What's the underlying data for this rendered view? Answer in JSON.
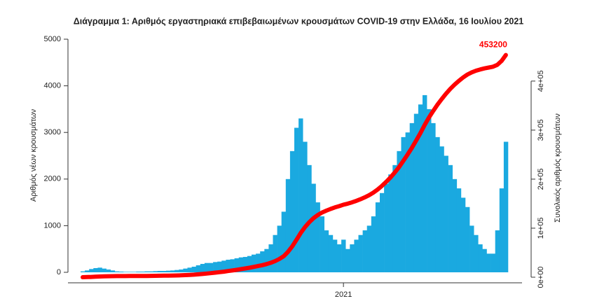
{
  "chart_data": {
    "type": "bar",
    "title": "Διάγραμμα 1: Αριθμός εργαστηριακά επιβεβαιωμένων κρουσμάτων COVID-19 στην Ελλάδα, 16 Ιουλίου 2021",
    "ylabel": "Αριθμός νέων κρουσμάτων",
    "y2label": "Συνολικός αριθμός κρουσμάτων",
    "categories": [
      null,
      null,
      null,
      null,
      null,
      null,
      null,
      null,
      null,
      null,
      null,
      null,
      null,
      null,
      null,
      null,
      null,
      null,
      null,
      null,
      null,
      null,
      null,
      null,
      null,
      null,
      null,
      null,
      null,
      null,
      null,
      null,
      null,
      null,
      null,
      null,
      null,
      null,
      null,
      null,
      null,
      null,
      null,
      null,
      null,
      null,
      null,
      null,
      null,
      null,
      null,
      null,
      null,
      null,
      null,
      null,
      null,
      null,
      null,
      null,
      null,
      "2021",
      null,
      null,
      null,
      null,
      null,
      null,
      null,
      null,
      null,
      null,
      null,
      null,
      null,
      null,
      null,
      null,
      null,
      null,
      null,
      null,
      null,
      null,
      null,
      null,
      null,
      null,
      null,
      null,
      null,
      null,
      null,
      null,
      null,
      null,
      null,
      null,
      null,
      null
    ],
    "values": [
      20,
      40,
      70,
      90,
      100,
      80,
      60,
      40,
      20,
      15,
      10,
      10,
      10,
      15,
      15,
      20,
      20,
      25,
      30,
      30,
      35,
      40,
      50,
      60,
      80,
      100,
      120,
      150,
      180,
      200,
      200,
      220,
      230,
      250,
      270,
      280,
      300,
      320,
      330,
      350,
      380,
      400,
      450,
      500,
      600,
      800,
      1000,
      1300,
      2000,
      2600,
      3100,
      3300,
      2800,
      2300,
      1900,
      1500,
      1200,
      900,
      800,
      700,
      600,
      700,
      500,
      600,
      700,
      800,
      900,
      1000,
      1200,
      1500,
      1700,
      1900,
      2100,
      2300,
      2600,
      2900,
      3000,
      3200,
      3400,
      3600,
      3800,
      3500,
      3200,
      2900,
      2700,
      2500,
      2300,
      2000,
      1800,
      1600,
      1400,
      1000,
      800,
      600,
      500,
      400,
      400,
      900,
      1800,
      2800
    ],
    "color": "#1aa9e0",
    "line": {
      "axis": "y2",
      "color": "#ff0000",
      "values": [
        90,
        260,
        560,
        950,
        1380,
        1720,
        1980,
        2160,
        2240,
        2310,
        2350,
        2390,
        2440,
        2500,
        2560,
        2650,
        2740,
        2850,
        2970,
        3100,
        3250,
        3430,
        3640,
        3900,
        4250,
        4680,
        5190,
        5840,
        6620,
        7480,
        8340,
        9290,
        10280,
        11360,
        12520,
        13730,
        15020,
        16400,
        17820,
        19330,
        20970,
        22690,
        24630,
        26790,
        29370,
        32820,
        37130,
        42730,
        51350,
        62560,
        75920,
        90140,
        102210,
        112130,
        120310,
        126780,
        131950,
        135830,
        139280,
        142300,
        144880,
        147900,
        150050,
        152640,
        155660,
        159100,
        162980,
        167290,
        172470,
        178930,
        186260,
        194450,
        203500,
        213410,
        224620,
        237120,
        250050,
        263840,
        278490,
        294010,
        310390,
        325470,
        339260,
        351760,
        363400,
        374170,
        384090,
        392710,
        400460,
        407360,
        413390,
        417700,
        421150,
        423740,
        425890,
        427620,
        429340,
        433220,
        440980,
        453200
      ]
    },
    "ylim": [
      -225,
      5090
    ],
    "yticks": [
      0,
      1000,
      2000,
      3000,
      4000,
      5000
    ],
    "y2lim": [
      -11400,
      494000
    ],
    "y2ticks": [
      {
        "value": 0,
        "label": "0e+00"
      },
      {
        "value": 100000,
        "label": "1e+05"
      },
      {
        "value": 200000,
        "label": "2e+05"
      },
      {
        "value": 300000,
        "label": "3e+05"
      },
      {
        "value": 400000,
        "label": "4e+05"
      }
    ]
  }
}
